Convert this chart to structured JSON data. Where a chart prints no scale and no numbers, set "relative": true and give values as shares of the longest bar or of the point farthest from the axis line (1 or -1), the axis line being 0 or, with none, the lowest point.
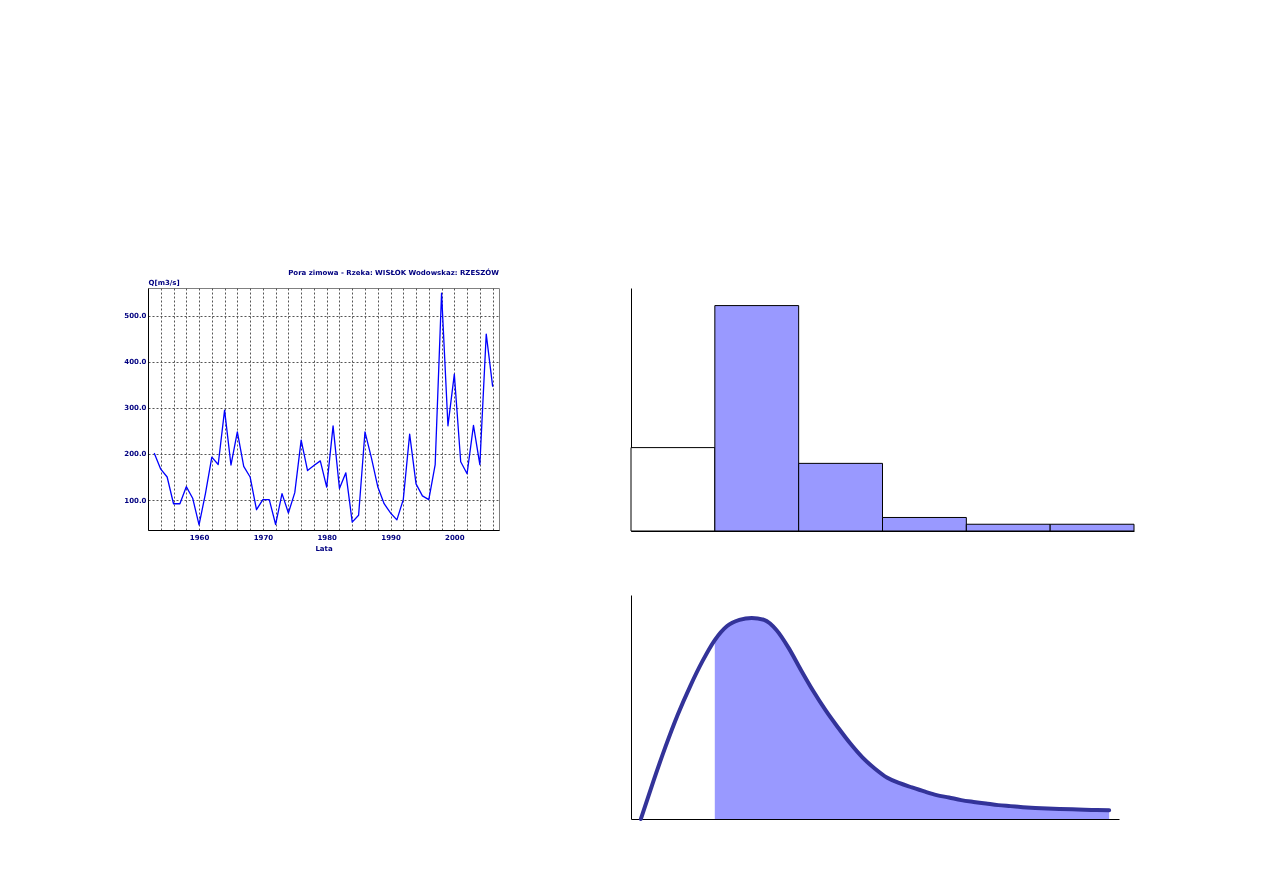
{
  "chart_data": [
    {
      "type": "line",
      "title": "Pora zimowa - Rzeka: WISŁOK Wodowskaz: RZESZÓW",
      "xlabel": "Lata",
      "ylabel": "Q[m3/s]",
      "x": [
        1953,
        1954,
        1955,
        1956,
        1957,
        1958,
        1959,
        1960,
        1961,
        1962,
        1963,
        1964,
        1965,
        1966,
        1967,
        1968,
        1969,
        1970,
        1971,
        1972,
        1973,
        1974,
        1975,
        1976,
        1977,
        1978,
        1979,
        1980,
        1981,
        1982,
        1983,
        1984,
        1985,
        1986,
        1987,
        1988,
        1989,
        1990,
        1991,
        1992,
        1993,
        1994,
        1995,
        1996,
        1997,
        1998,
        1999,
        2000,
        2001,
        2002,
        2003,
        2004,
        2005,
        2006
      ],
      "series": [
        {
          "color": "#0000ff",
          "values": [
            201,
            167,
            150,
            92,
            92,
            129,
            104,
            46,
            114,
            193,
            177,
            295,
            176,
            248,
            173,
            150,
            79,
            101,
            101,
            47,
            114,
            72,
            116,
            230,
            164,
            175,
            185,
            128,
            261,
            125,
            159,
            52,
            67,
            248,
            192,
            129,
            92,
            72,
            57,
            101,
            243,
            135,
            109,
            101,
            177,
            549,
            261,
            373,
            183,
            157,
            262,
            177,
            460,
            347
          ]
        }
      ],
      "xlim": [
        1952,
        2007
      ],
      "ylim": [
        35,
        560
      ],
      "xticks": [
        {
          "value": 1954,
          "label": null
        },
        {
          "value": 1956,
          "label": null
        },
        {
          "value": 1958,
          "label": null
        },
        1960,
        {
          "value": 1962,
          "label": null
        },
        {
          "value": 1964,
          "label": null
        },
        {
          "value": 1966,
          "label": null
        },
        {
          "value": 1968,
          "label": null
        },
        1970,
        {
          "value": 1972,
          "label": null
        },
        {
          "value": 1974,
          "label": null
        },
        {
          "value": 1976,
          "label": null
        },
        {
          "value": 1978,
          "label": null
        },
        1980,
        {
          "value": 1982,
          "label": null
        },
        {
          "value": 1984,
          "label": null
        },
        {
          "value": 1986,
          "label": null
        },
        {
          "value": 1988,
          "label": null
        },
        1990,
        {
          "value": 1992,
          "label": null
        },
        {
          "value": 1994,
          "label": null
        },
        {
          "value": 1996,
          "label": null
        },
        {
          "value": 1998,
          "label": null
        },
        2000,
        {
          "value": 2002,
          "label": null
        },
        {
          "value": 2004,
          "label": null
        },
        {
          "value": 2006,
          "label": null
        }
      ],
      "yticks": [
        {
          "value": 100,
          "label": "100.0"
        },
        {
          "value": 200,
          "label": "200.0"
        },
        {
          "value": 300,
          "label": "300.0"
        },
        {
          "value": 400,
          "label": "400.0"
        },
        {
          "value": 500,
          "label": "500.0"
        }
      ],
      "grid": true
    },
    {
      "type": "bar",
      "categories": [
        null,
        null,
        null,
        null,
        null,
        null
      ],
      "values": [
        0.37,
        1,
        0.3,
        0.06,
        0.03,
        0.03
      ],
      "colors": [
        "#ffffff",
        "#9999ff",
        "#9999ff",
        "#9999ff",
        "#9999ff",
        "#9999ff"
      ],
      "relative": true,
      "tick_labels": false
    },
    {
      "type": "line",
      "categories": [
        null,
        null,
        null,
        null,
        null,
        null,
        null,
        null,
        null,
        null,
        null,
        null,
        null,
        null,
        null,
        null,
        null,
        null,
        null,
        null,
        null,
        null,
        null,
        null,
        null,
        null,
        null,
        null,
        null,
        null,
        null,
        null,
        null,
        null,
        null,
        null,
        null,
        null,
        null
      ],
      "series": [
        {
          "type": "area",
          "color": "#9999ff",
          "values": [
            null,
            null,
            null,
            null,
            null,
            null,
            0.89,
            0.96,
            0.99,
            1,
            0.99,
            0.94,
            0.85,
            0.74,
            0.635,
            0.54,
            0.455,
            0.375,
            0.305,
            0.25,
            0.205,
            0.178,
            0.157,
            0.137,
            0.119,
            0.107,
            0.094,
            0.085,
            0.077,
            0.069,
            0.064,
            0.059,
            0.055,
            0.052,
            0.05,
            0.048,
            0.046,
            0.045,
            0.044
          ]
        },
        {
          "color": "#333399",
          "values": [
            0,
            0.185,
            0.36,
            0.52,
            0.66,
            0.785,
            0.89,
            0.96,
            0.99,
            1,
            0.99,
            0.94,
            0.85,
            0.74,
            0.635,
            0.54,
            0.455,
            0.375,
            0.305,
            0.25,
            0.205,
            0.178,
            0.157,
            0.137,
            0.119,
            0.107,
            0.094,
            0.085,
            0.077,
            0.069,
            0.064,
            0.059,
            0.055,
            0.052,
            0.05,
            0.048,
            0.046,
            0.045,
            0.044
          ]
        }
      ],
      "relative": true,
      "tick_labels": false
    }
  ]
}
